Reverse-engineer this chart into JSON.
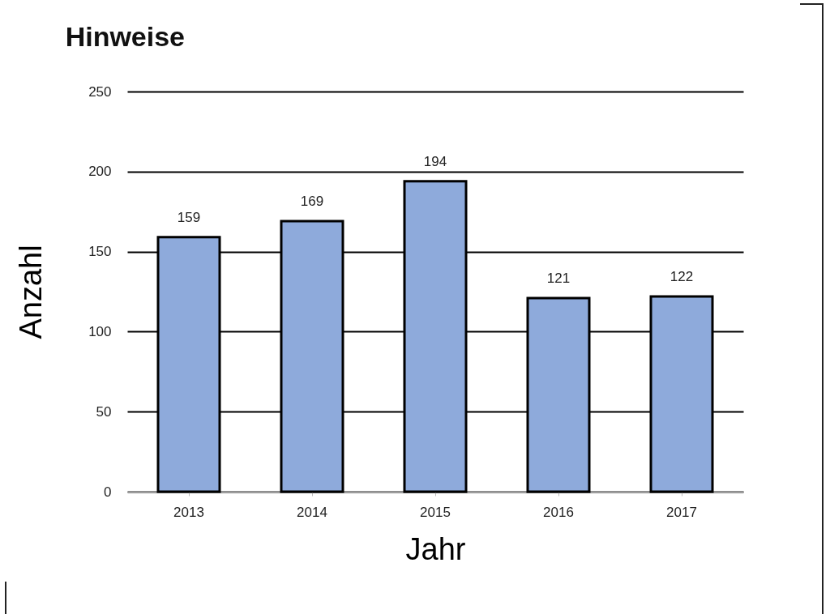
{
  "chart_data": {
    "type": "bar",
    "title": "Hinweise",
    "xlabel": "Jahr",
    "ylabel": "Anzahl",
    "categories": [
      "2013",
      "2014",
      "2015",
      "2016",
      "2017"
    ],
    "values": [
      159,
      169,
      194,
      121,
      122
    ],
    "color": "#8eaadb",
    "ylim": [
      0,
      250
    ],
    "yticks": [
      0,
      50,
      100,
      150,
      200,
      250
    ],
    "grid": "y",
    "data_labels": true
  }
}
